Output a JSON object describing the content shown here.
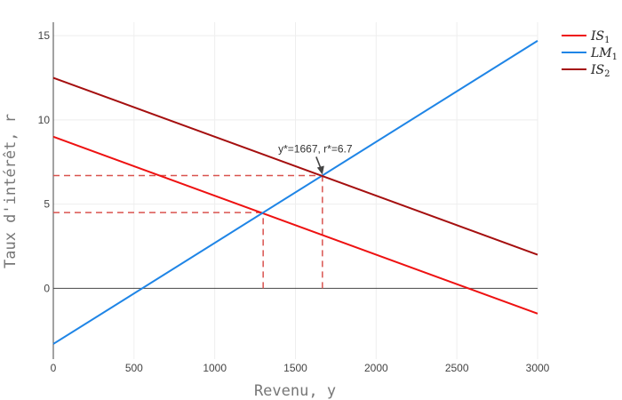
{
  "chart_data": {
    "type": "line",
    "xlabel": "Revenu, y",
    "ylabel": "Taux d'intérêt, r",
    "xlim": [
      0,
      3000
    ],
    "ylim": [
      -4.2,
      15.8
    ],
    "x_ticks": [
      0,
      500,
      1000,
      1500,
      2000,
      2500,
      3000
    ],
    "y_ticks": [
      0,
      5,
      10,
      15
    ],
    "grid": true,
    "legend_position": "top-right",
    "series": [
      {
        "name": "IS",
        "subscript": "1",
        "color": "#ee1111",
        "x": [
          0,
          3000
        ],
        "y": [
          9,
          -1.5
        ]
      },
      {
        "name": "LM",
        "subscript": "1",
        "color": "#1f85e6",
        "x": [
          0,
          3000
        ],
        "y": [
          -3.3,
          14.7
        ]
      },
      {
        "name": "IS",
        "subscript": "2",
        "color": "#a50f0f",
        "x": [
          0,
          3000
        ],
        "y": [
          12.5,
          2
        ]
      }
    ],
    "reference_lines": [
      {
        "x": [
          0,
          1300
        ],
        "y": [
          4.5,
          4.5
        ],
        "color": "#d9534f"
      },
      {
        "x": [
          1300,
          1300
        ],
        "y": [
          0,
          4.5
        ],
        "color": "#d9534f"
      },
      {
        "x": [
          0,
          1667
        ],
        "y": [
          6.7,
          6.7
        ],
        "color": "#d9534f"
      },
      {
        "x": [
          1667,
          1667
        ],
        "y": [
          0,
          6.7
        ],
        "color": "#d9534f"
      }
    ],
    "annotation": {
      "text": "y*=1667, r*=6.7",
      "x": 1667,
      "y": 6.7
    }
  }
}
